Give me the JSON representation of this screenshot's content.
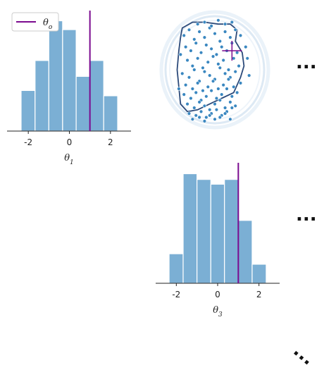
{
  "chart_data": [
    {
      "type": "bar",
      "panel": "marginal-theta1",
      "bin_edges": [
        -2.35,
        -1.67,
        -1.0,
        -0.33,
        0.33,
        1.0,
        1.67,
        2.35
      ],
      "values": [
        46,
        80,
        125,
        115,
        62,
        80,
        40
      ],
      "ylim": [
        0,
        135
      ],
      "xlim": [
        -3,
        3
      ],
      "xticks": [
        -2,
        0,
        2
      ],
      "xtick_labels": [
        "-2",
        "0",
        "2"
      ],
      "xlabel": "θ1",
      "true_value": 1.0,
      "bar_color": "#7bafd4",
      "line_color": "#7b0a8f"
    },
    {
      "type": "scatter",
      "panel": "joint-theta1-theta3",
      "xlim": [
        -3,
        3
      ],
      "ylim": [
        -3,
        3
      ],
      "true_point": [
        1.0,
        1.0
      ],
      "point_color": "#3a87c0",
      "contour_color": "#2c4a7a",
      "x": [
        -1.8,
        -1.5,
        -1.2,
        -0.9,
        -0.6,
        -0.3,
        0.0,
        0.3,
        0.6,
        0.9,
        1.2,
        1.5,
        -1.7,
        -1.4,
        -1.1,
        -0.8,
        -0.5,
        -0.2,
        0.1,
        0.4,
        0.7,
        1.0,
        1.3,
        -1.6,
        -1.3,
        -1.0,
        -0.7,
        -0.4,
        -0.1,
        0.2,
        0.5,
        0.8,
        1.1,
        1.4,
        -1.9,
        -1.5,
        -1.2,
        -0.9,
        -0.6,
        -0.3,
        0.0,
        0.3,
        0.6,
        0.9,
        1.2,
        -1.7,
        -1.3,
        -1.0,
        -0.7,
        -0.4,
        -0.1,
        0.2,
        0.5,
        0.8,
        1.1,
        1.5,
        -1.8,
        -1.4,
        -1.1,
        -0.8,
        -0.5,
        -0.2,
        0.1,
        0.4,
        0.7,
        1.0,
        1.3,
        -1.6,
        -1.2,
        -0.9,
        -0.6,
        -0.3,
        0.0,
        0.3,
        0.6,
        0.9,
        1.2,
        -1.5,
        -1.1,
        -0.8,
        -0.5,
        -0.2,
        0.1,
        0.4,
        0.7,
        1.0,
        -1.3,
        -0.9,
        -0.6,
        -0.3,
        0.0,
        0.3,
        0.6,
        0.9,
        -1.0,
        -0.6,
        -0.2,
        0.2,
        0.6,
        1.0,
        -2.0,
        1.8,
        2.0,
        -2.1,
        1.9
      ],
      "y": [
        1.8,
        2.1,
        1.6,
        2.0,
        1.7,
        2.2,
        1.9,
        1.5,
        2.0,
        1.7,
        2.1,
        1.8,
        1.2,
        1.0,
        1.4,
        0.9,
        1.3,
        1.1,
        0.8,
        1.2,
        1.0,
        1.4,
        0.9,
        0.5,
        0.2,
        0.6,
        0.1,
        0.4,
        0.7,
        0.3,
        0.5,
        0.0,
        0.6,
        0.2,
        -0.2,
        -0.4,
        0.0,
        -0.6,
        -0.1,
        -0.3,
        -0.5,
        0.1,
        -0.2,
        -0.4,
        -0.1,
        -0.8,
        -1.0,
        -0.7,
        -1.1,
        -0.9,
        -0.6,
        -1.0,
        -0.8,
        -0.5,
        -0.9,
        -0.7,
        -1.3,
        -1.5,
        -1.2,
        -1.6,
        -1.4,
        -1.1,
        -1.5,
        -1.3,
        -1.0,
        -1.4,
        -1.2,
        -1.8,
        -2.0,
        -1.7,
        -1.9,
        -2.1,
        -1.8,
        -1.6,
        -2.0,
        -1.7,
        -1.9,
        -2.3,
        -2.4,
        -2.2,
        -2.5,
        -2.3,
        -2.1,
        -2.4,
        -2.2,
        -2.0,
        -2.6,
        -2.5,
        -2.7,
        -2.4,
        -2.6,
        -2.5,
        -2.3,
        -2.6,
        2.4,
        2.5,
        2.3,
        2.6,
        2.4,
        2.5,
        0.8,
        1.2,
        -0.3,
        -1.0,
        0.6
      ]
    },
    {
      "type": "bar",
      "panel": "marginal-theta3",
      "bin_edges": [
        -2.35,
        -1.67,
        -1.0,
        -0.33,
        0.33,
        1.0,
        1.67,
        2.35
      ],
      "values": [
        31,
        115,
        109,
        104,
        109,
        66,
        20
      ],
      "ylim": [
        0,
        125
      ],
      "xlim": [
        -3,
        3
      ],
      "xticks": [
        -2,
        0,
        2
      ],
      "xtick_labels": [
        "-2",
        "0",
        "2"
      ],
      "xlabel": "θ3",
      "true_value": 1.0,
      "bar_color": "#7bafd4",
      "line_color": "#7b0a8f"
    }
  ],
  "legend": {
    "label": "θo",
    "color": "#7b0a8f"
  },
  "ellipsis": {
    "row1": "...",
    "row2": "...",
    "diag": "..."
  }
}
